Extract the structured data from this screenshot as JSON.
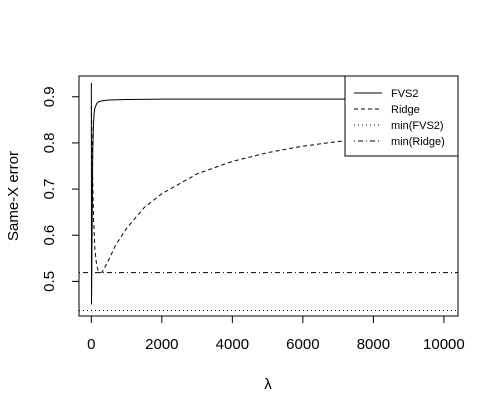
{
  "chart_data": {
    "type": "line",
    "title": "",
    "xlabel": "λ",
    "ylabel": "Same-X error",
    "xlim": [
      -350,
      10400
    ],
    "ylim": [
      0.425,
      0.945
    ],
    "xticks": [
      0,
      2000,
      4000,
      6000,
      8000,
      10000
    ],
    "xtick_labels": [
      "0",
      "2000",
      "4000",
      "6000",
      "8000",
      "10000"
    ],
    "yticks": [
      0.5,
      0.6,
      0.7,
      0.8,
      0.9
    ],
    "ytick_labels": [
      "0.5",
      "0.6",
      "0.7",
      "0.8",
      "0.9"
    ],
    "grid": false,
    "legend_position": "top-right",
    "series": [
      {
        "name": "FVS2",
        "style": "solid",
        "x": [
          0,
          5,
          10,
          20,
          30,
          40,
          60,
          80,
          100,
          150,
          200,
          300,
          500,
          1000,
          2000,
          4000,
          7000,
          10000
        ],
        "y": [
          0.93,
          0.45,
          0.5,
          0.6,
          0.7,
          0.78,
          0.84,
          0.865,
          0.875,
          0.885,
          0.889,
          0.891,
          0.893,
          0.894,
          0.895,
          0.895,
          0.895,
          0.895
        ]
      },
      {
        "name": "Ridge",
        "style": "dashed",
        "x": [
          0,
          30,
          60,
          100,
          150,
          200,
          250,
          300,
          350,
          400,
          500,
          700,
          1000,
          1500,
          2000,
          3000,
          4000,
          5000,
          6000,
          7000,
          8000,
          9000,
          10000
        ],
        "y": [
          0.88,
          0.75,
          0.64,
          0.57,
          0.535,
          0.522,
          0.519,
          0.52,
          0.525,
          0.533,
          0.548,
          0.58,
          0.615,
          0.66,
          0.69,
          0.733,
          0.76,
          0.779,
          0.793,
          0.803,
          0.811,
          0.818,
          0.823
        ]
      },
      {
        "name": "min(FVS2)",
        "style": "dotted",
        "x": [
          -350,
          10400
        ],
        "y": [
          0.437,
          0.437
        ]
      },
      {
        "name": "min(Ridge)",
        "style": "dotdash",
        "x": [
          -350,
          10400
        ],
        "y": [
          0.519,
          0.519
        ]
      }
    ]
  }
}
